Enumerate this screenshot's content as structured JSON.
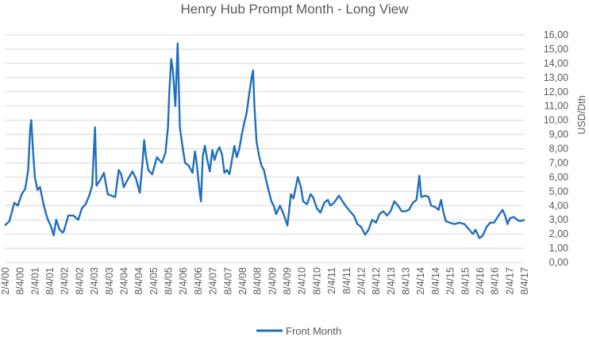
{
  "chart_data": {
    "type": "line",
    "title": "Henry Hub Prompt Month - Long View",
    "xlabel": "",
    "ylabel": "USD/Dth",
    "ylim": [
      0,
      16
    ],
    "y_ticks": [
      "0,00",
      "1,00",
      "2,00",
      "3,00",
      "4,00",
      "5,00",
      "6,00",
      "7,00",
      "8,00",
      "9,00",
      "10,00",
      "11,00",
      "12,00",
      "13,00",
      "14,00",
      "15,00",
      "16,00"
    ],
    "x_ticks": [
      "2/4/00",
      "8/4/00",
      "2/4/01",
      "8/4/01",
      "2/4/02",
      "8/4/02",
      "2/4/03",
      "8/4/03",
      "2/4/04",
      "8/4/04",
      "2/4/05",
      "8/4/05",
      "2/4/06",
      "8/4/06",
      "2/4/07",
      "8/4/07",
      "2/4/08",
      "8/4/08",
      "2/4/09",
      "8/4/09",
      "2/4/10",
      "8/4/10",
      "2/4/11",
      "8/4/11",
      "2/4/12",
      "8/4/12",
      "2/4/13",
      "8/4/13",
      "2/4/14",
      "8/4/14",
      "2/4/15",
      "8/4/15",
      "2/4/16",
      "8/4/16",
      "2/4/17",
      "8/4/17"
    ],
    "x_range": [
      "2000-02-04",
      "2017-09-15"
    ],
    "grid": true,
    "y_axis_position": "right",
    "legend_position": "bottom",
    "series": [
      {
        "name": "Front Month",
        "color": "#1f6fbf",
        "points": [
          [
            "2000-02-04",
            2.6
          ],
          [
            "2000-04-01",
            2.9
          ],
          [
            "2000-06-01",
            4.2
          ],
          [
            "2000-07-15",
            4.0
          ],
          [
            "2000-09-01",
            4.8
          ],
          [
            "2000-10-15",
            5.2
          ],
          [
            "2000-11-20",
            6.5
          ],
          [
            "2000-12-15",
            9.5
          ],
          [
            "2000-12-28",
            10.0
          ],
          [
            "2001-01-15",
            8.2
          ],
          [
            "2001-02-10",
            6.0
          ],
          [
            "2001-03-15",
            5.1
          ],
          [
            "2001-04-15",
            5.3
          ],
          [
            "2001-06-01",
            4.0
          ],
          [
            "2001-07-15",
            3.1
          ],
          [
            "2001-09-01",
            2.5
          ],
          [
            "2001-10-01",
            1.9
          ],
          [
            "2001-11-01",
            3.0
          ],
          [
            "2001-12-15",
            2.3
          ],
          [
            "2002-01-20",
            2.1
          ],
          [
            "2002-02-04",
            2.2
          ],
          [
            "2002-04-01",
            3.3
          ],
          [
            "2002-06-01",
            3.3
          ],
          [
            "2002-08-01",
            3.0
          ],
          [
            "2002-09-15",
            3.8
          ],
          [
            "2002-11-01",
            4.1
          ],
          [
            "2002-12-15",
            4.7
          ],
          [
            "2003-01-20",
            5.4
          ],
          [
            "2003-02-25",
            9.5
          ],
          [
            "2003-03-15",
            5.4
          ],
          [
            "2003-05-01",
            5.8
          ],
          [
            "2003-06-15",
            6.3
          ],
          [
            "2003-08-01",
            4.8
          ],
          [
            "2003-09-15",
            4.7
          ],
          [
            "2003-11-01",
            4.6
          ],
          [
            "2003-12-15",
            6.5
          ],
          [
            "2004-01-15",
            6.2
          ],
          [
            "2004-02-15",
            5.3
          ],
          [
            "2004-04-01",
            5.8
          ],
          [
            "2004-06-01",
            6.4
          ],
          [
            "2004-07-15",
            5.9
          ],
          [
            "2004-09-01",
            4.9
          ],
          [
            "2004-10-01",
            6.8
          ],
          [
            "2004-10-25",
            8.6
          ],
          [
            "2004-11-15",
            7.5
          ],
          [
            "2004-12-15",
            6.5
          ],
          [
            "2005-02-01",
            6.2
          ],
          [
            "2005-04-01",
            7.4
          ],
          [
            "2005-06-01",
            7.0
          ],
          [
            "2005-07-15",
            7.7
          ],
          [
            "2005-08-15",
            9.5
          ],
          [
            "2005-09-01",
            12.0
          ],
          [
            "2005-09-25",
            14.3
          ],
          [
            "2005-10-15",
            13.5
          ],
          [
            "2005-11-15",
            11.0
          ],
          [
            "2005-12-13",
            15.4
          ],
          [
            "2006-01-10",
            9.5
          ],
          [
            "2006-02-15",
            8.0
          ],
          [
            "2006-03-15",
            7.0
          ],
          [
            "2006-05-01",
            6.8
          ],
          [
            "2006-06-15",
            6.3
          ],
          [
            "2006-07-15",
            7.8
          ],
          [
            "2006-08-01",
            7.2
          ],
          [
            "2006-09-15",
            4.8
          ],
          [
            "2006-09-28",
            4.3
          ],
          [
            "2006-10-20",
            7.5
          ],
          [
            "2006-11-15",
            8.2
          ],
          [
            "2006-12-15",
            7.2
          ],
          [
            "2007-01-15",
            6.4
          ],
          [
            "2007-02-15",
            7.9
          ],
          [
            "2007-03-15",
            7.2
          ],
          [
            "2007-04-15",
            7.8
          ],
          [
            "2007-05-15",
            8.1
          ],
          [
            "2007-06-15",
            7.6
          ],
          [
            "2007-07-15",
            6.3
          ],
          [
            "2007-08-15",
            6.5
          ],
          [
            "2007-09-15",
            6.2
          ],
          [
            "2007-10-15",
            7.2
          ],
          [
            "2007-11-15",
            8.2
          ],
          [
            "2007-12-15",
            7.4
          ],
          [
            "2008-01-15",
            8.0
          ],
          [
            "2008-02-15",
            9.0
          ],
          [
            "2008-03-15",
            9.8
          ],
          [
            "2008-04-15",
            10.5
          ],
          [
            "2008-05-15",
            11.8
          ],
          [
            "2008-06-15",
            13.0
          ],
          [
            "2008-07-03",
            13.5
          ],
          [
            "2008-07-20",
            11.0
          ],
          [
            "2008-08-15",
            8.5
          ],
          [
            "2008-09-15",
            7.5
          ],
          [
            "2008-10-15",
            6.8
          ],
          [
            "2008-11-15",
            6.5
          ],
          [
            "2008-12-15",
            5.7
          ],
          [
            "2009-01-15",
            5.0
          ],
          [
            "2009-02-15",
            4.3
          ],
          [
            "2009-03-15",
            4.0
          ],
          [
            "2009-04-15",
            3.4
          ],
          [
            "2009-06-01",
            4.0
          ],
          [
            "2009-07-15",
            3.4
          ],
          [
            "2009-09-01",
            2.6
          ],
          [
            "2009-10-15",
            4.8
          ],
          [
            "2009-11-15",
            4.5
          ],
          [
            "2010-01-08",
            6.0
          ],
          [
            "2010-02-15",
            5.3
          ],
          [
            "2010-03-15",
            4.3
          ],
          [
            "2010-05-01",
            4.1
          ],
          [
            "2010-06-15",
            4.8
          ],
          [
            "2010-07-15",
            4.6
          ],
          [
            "2010-09-01",
            3.8
          ],
          [
            "2010-10-15",
            3.5
          ],
          [
            "2010-12-01",
            4.2
          ],
          [
            "2011-01-15",
            4.4
          ],
          [
            "2011-02-15",
            4.0
          ],
          [
            "2011-04-01",
            4.2
          ],
          [
            "2011-06-01",
            4.7
          ],
          [
            "2011-07-15",
            4.3
          ],
          [
            "2011-09-01",
            3.9
          ],
          [
            "2011-10-15",
            3.6
          ],
          [
            "2011-12-01",
            3.3
          ],
          [
            "2012-01-15",
            2.7
          ],
          [
            "2012-03-01",
            2.5
          ],
          [
            "2012-04-20",
            1.95
          ],
          [
            "2012-06-01",
            2.3
          ],
          [
            "2012-07-15",
            3.0
          ],
          [
            "2012-09-01",
            2.8
          ],
          [
            "2012-10-15",
            3.4
          ],
          [
            "2012-12-01",
            3.6
          ],
          [
            "2013-01-15",
            3.3
          ],
          [
            "2013-03-01",
            3.6
          ],
          [
            "2013-04-15",
            4.3
          ],
          [
            "2013-06-01",
            4.0
          ],
          [
            "2013-07-15",
            3.6
          ],
          [
            "2013-09-01",
            3.6
          ],
          [
            "2013-10-15",
            3.7
          ],
          [
            "2013-12-01",
            4.2
          ],
          [
            "2014-01-15",
            4.4
          ],
          [
            "2014-02-20",
            6.1
          ],
          [
            "2014-03-15",
            4.6
          ],
          [
            "2014-05-01",
            4.7
          ],
          [
            "2014-06-15",
            4.6
          ],
          [
            "2014-07-15",
            4.0
          ],
          [
            "2014-09-01",
            3.9
          ],
          [
            "2014-10-15",
            3.7
          ],
          [
            "2014-11-15",
            4.4
          ],
          [
            "2014-12-15",
            3.5
          ],
          [
            "2015-01-15",
            2.9
          ],
          [
            "2015-03-01",
            2.8
          ],
          [
            "2015-05-01",
            2.7
          ],
          [
            "2015-07-01",
            2.8
          ],
          [
            "2015-09-01",
            2.7
          ],
          [
            "2015-10-15",
            2.4
          ],
          [
            "2015-12-15",
            2.0
          ],
          [
            "2016-01-15",
            2.3
          ],
          [
            "2016-03-04",
            1.7
          ],
          [
            "2016-04-15",
            1.9
          ],
          [
            "2016-06-01",
            2.5
          ],
          [
            "2016-07-15",
            2.8
          ],
          [
            "2016-09-01",
            2.8
          ],
          [
            "2016-10-15",
            3.2
          ],
          [
            "2016-12-15",
            3.7
          ],
          [
            "2017-01-15",
            3.3
          ],
          [
            "2017-02-15",
            2.7
          ],
          [
            "2017-03-15",
            3.1
          ],
          [
            "2017-05-01",
            3.2
          ],
          [
            "2017-06-15",
            3.0
          ],
          [
            "2017-07-15",
            2.9
          ],
          [
            "2017-09-15",
            3.0
          ]
        ]
      }
    ]
  }
}
